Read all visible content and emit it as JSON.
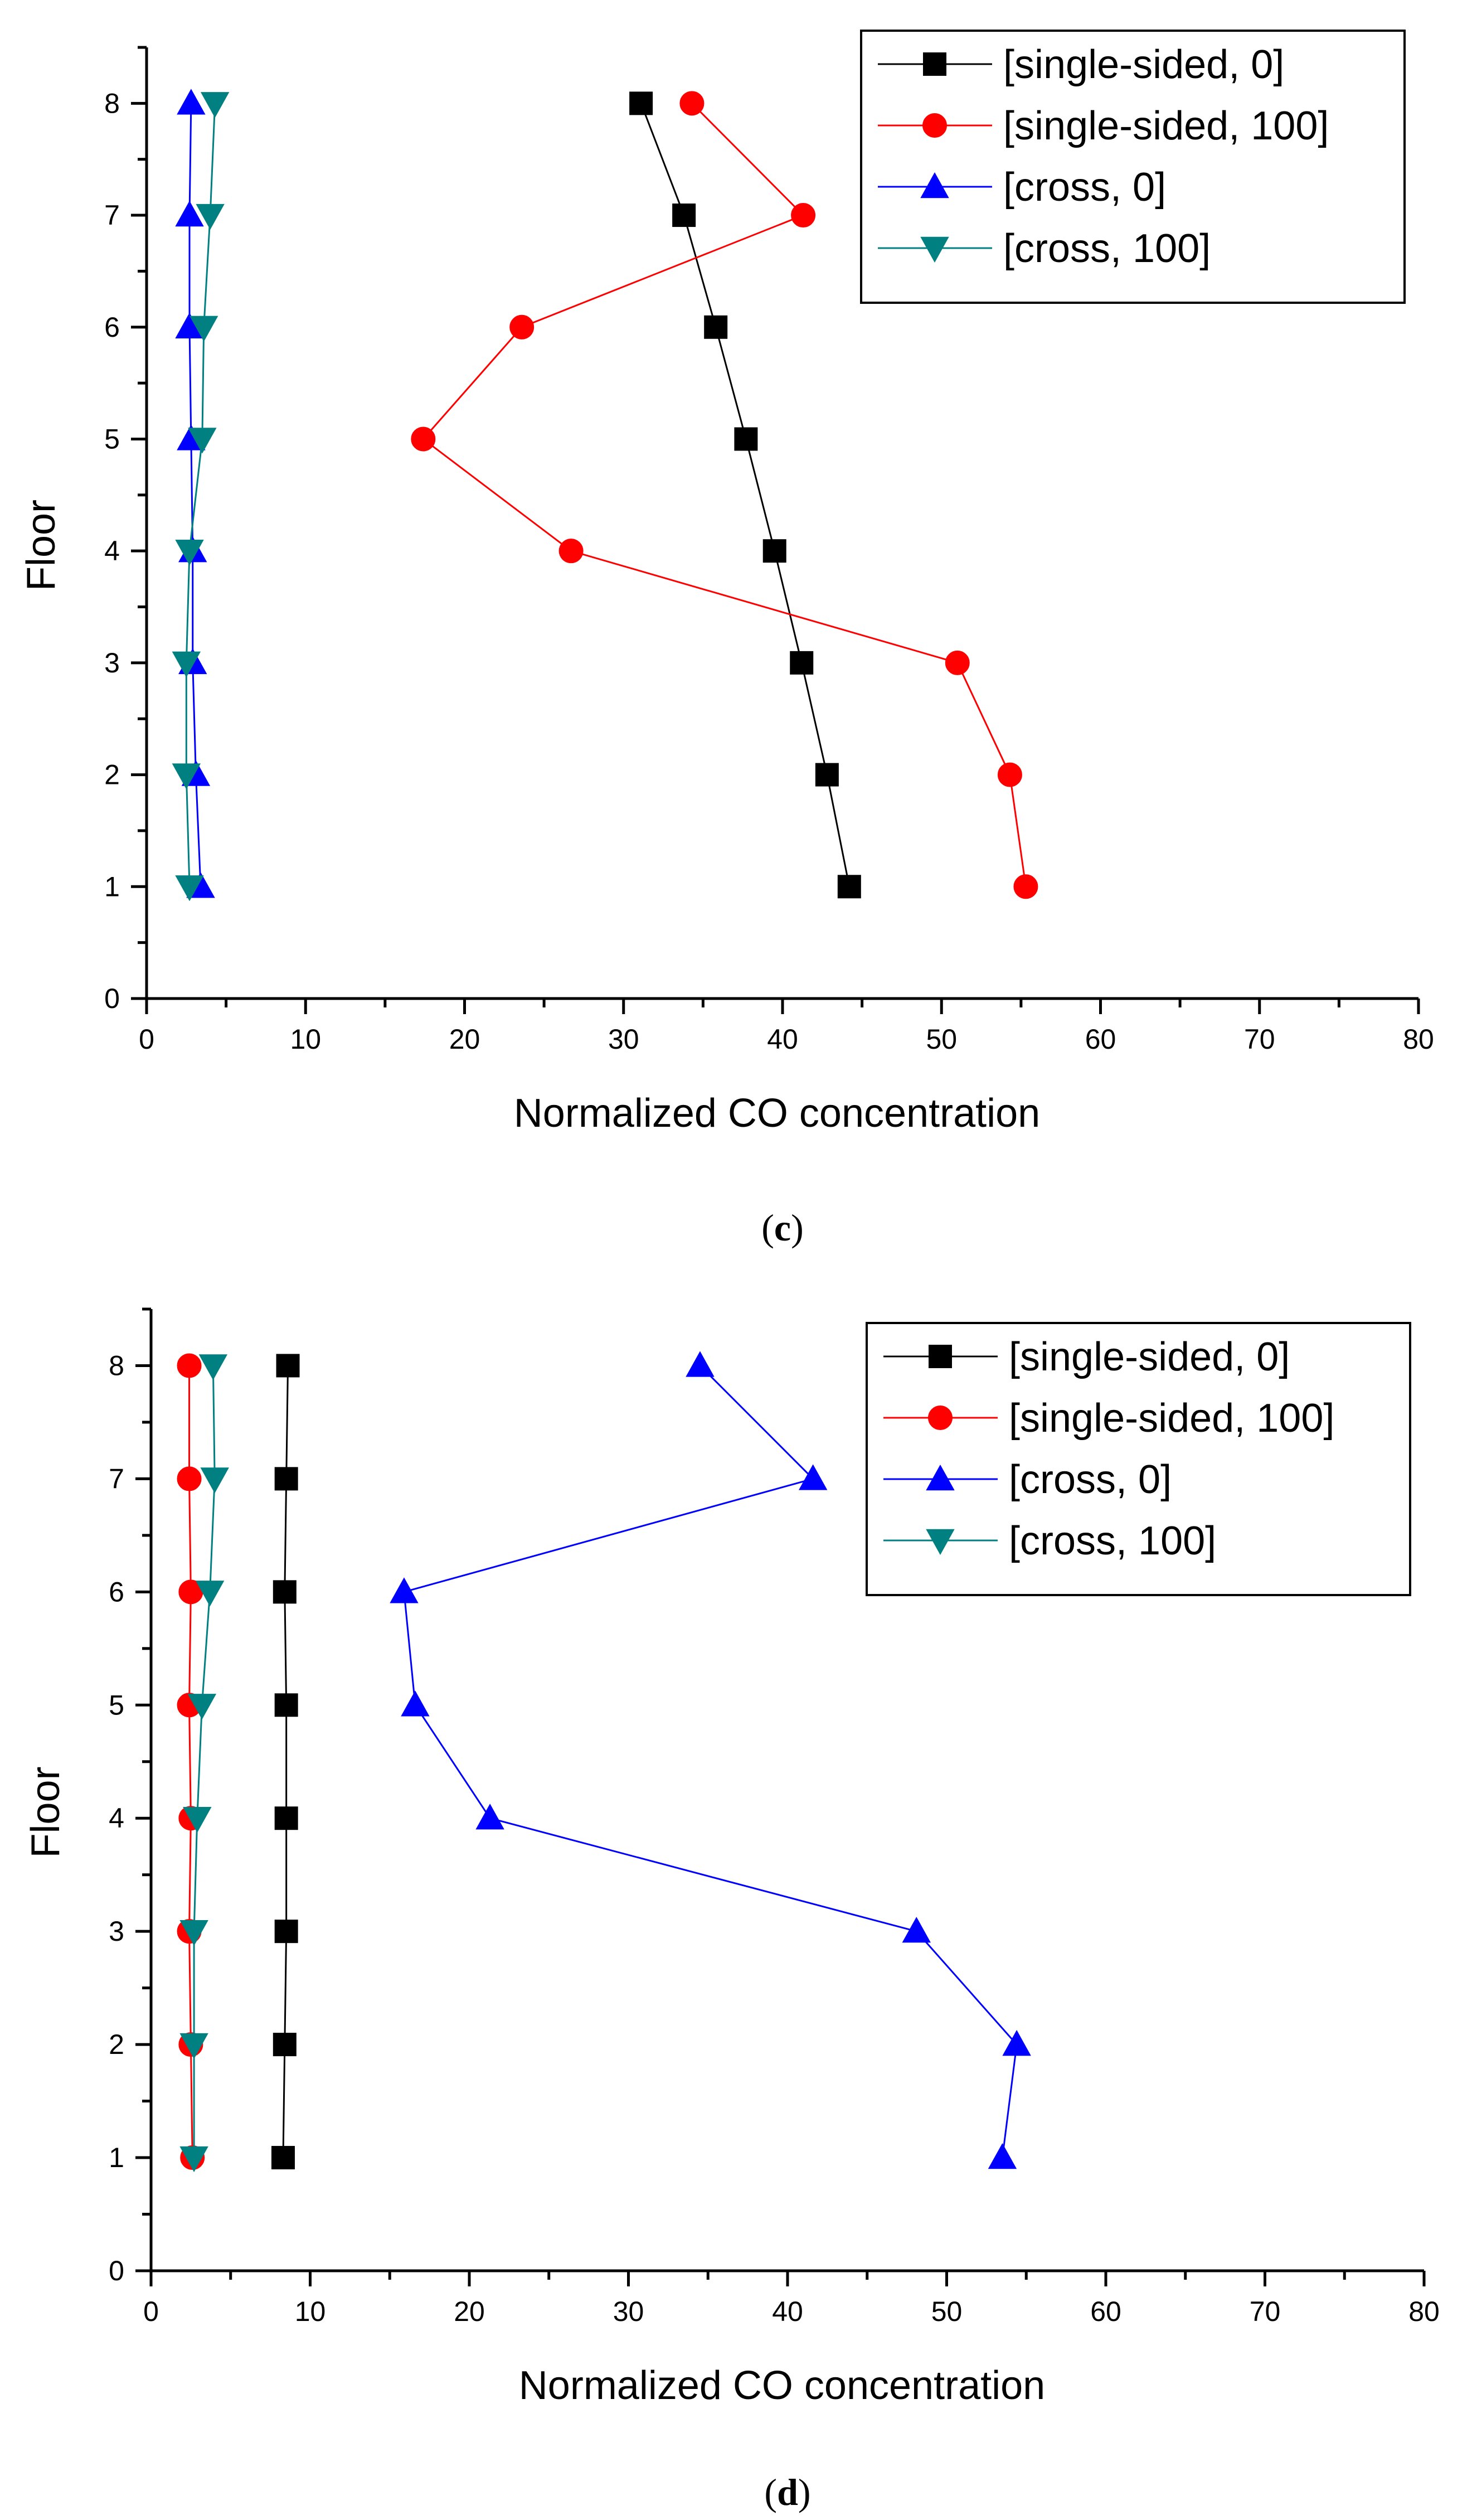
{
  "series_colors": {
    "[single-sided, 0]": "#000000",
    "[single-sided, 100]": "#ff0000",
    "[cross, 0]": "#0000ff",
    "[cross, 100]": "#008080"
  },
  "chart_data": [
    {
      "panel": "c",
      "caption_open": "(",
      "caption_letter": "c",
      "caption_close": ")",
      "type": "line",
      "xlabel": "Normalized CO concentration",
      "ylabel": "Floor",
      "xlim": [
        0,
        80
      ],
      "ylim": [
        0,
        8.5
      ],
      "xticks": [
        0,
        10,
        20,
        30,
        40,
        50,
        60,
        70,
        80
      ],
      "yticks": [
        0,
        1,
        2,
        3,
        4,
        5,
        6,
        7,
        8
      ],
      "legend_position": "top-right",
      "series": [
        {
          "name": "[single-sided, 0]",
          "marker": "square",
          "points": [
            [
              44.2,
              1
            ],
            [
              42.8,
              2
            ],
            [
              41.2,
              3
            ],
            [
              39.5,
              4
            ],
            [
              37.7,
              5
            ],
            [
              35.8,
              6
            ],
            [
              33.8,
              7
            ],
            [
              31.1,
              8
            ]
          ]
        },
        {
          "name": "[single-sided, 100]",
          "marker": "circle",
          "points": [
            [
              55.3,
              1
            ],
            [
              54.3,
              2
            ],
            [
              51.0,
              3
            ],
            [
              26.7,
              4
            ],
            [
              17.4,
              5
            ],
            [
              23.6,
              6
            ],
            [
              41.3,
              7
            ],
            [
              34.3,
              8
            ]
          ]
        },
        {
          "name": "[cross, 0]",
          "marker": "triangle-up",
          "points": [
            [
              3.4,
              1
            ],
            [
              3.1,
              2
            ],
            [
              2.9,
              3
            ],
            [
              2.9,
              4
            ],
            [
              2.8,
              5
            ],
            [
              2.7,
              6
            ],
            [
              2.7,
              7
            ],
            [
              2.8,
              8
            ]
          ]
        },
        {
          "name": "[cross, 100]",
          "marker": "triangle-down",
          "points": [
            [
              2.7,
              1
            ],
            [
              2.5,
              2
            ],
            [
              2.5,
              3
            ],
            [
              2.7,
              4
            ],
            [
              3.5,
              5
            ],
            [
              3.6,
              6
            ],
            [
              4.0,
              7
            ],
            [
              4.3,
              8
            ]
          ]
        }
      ]
    },
    {
      "panel": "d",
      "caption_open": "(",
      "caption_letter": "d",
      "caption_close": ")",
      "type": "line",
      "xlabel": "Normalized CO concentration",
      "ylabel": "Floor",
      "xlim": [
        0,
        80
      ],
      "ylim": [
        0,
        8.5
      ],
      "xticks": [
        0,
        10,
        20,
        30,
        40,
        50,
        60,
        70,
        80
      ],
      "yticks": [
        0,
        1,
        2,
        3,
        4,
        5,
        6,
        7,
        8
      ],
      "legend_position": "top-right",
      "series": [
        {
          "name": "[single-sided, 0]",
          "marker": "square",
          "points": [
            [
              8.3,
              1
            ],
            [
              8.4,
              2
            ],
            [
              8.5,
              3
            ],
            [
              8.5,
              4
            ],
            [
              8.5,
              5
            ],
            [
              8.4,
              6
            ],
            [
              8.5,
              7
            ],
            [
              8.6,
              8
            ]
          ]
        },
        {
          "name": "[single-sided, 100]",
          "marker": "circle",
          "points": [
            [
              2.6,
              1
            ],
            [
              2.5,
              2
            ],
            [
              2.4,
              3
            ],
            [
              2.5,
              4
            ],
            [
              2.4,
              5
            ],
            [
              2.5,
              6
            ],
            [
              2.4,
              7
            ],
            [
              2.4,
              8
            ]
          ]
        },
        {
          "name": "[cross, 0]",
          "marker": "triangle-up",
          "points": [
            [
              53.5,
              1
            ],
            [
              54.4,
              2
            ],
            [
              48.1,
              3
            ],
            [
              21.3,
              4
            ],
            [
              16.6,
              5
            ],
            [
              15.9,
              6
            ],
            [
              41.6,
              7
            ],
            [
              34.5,
              8
            ]
          ]
        },
        {
          "name": "[cross, 100]",
          "marker": "triangle-down",
          "points": [
            [
              2.7,
              1
            ],
            [
              2.7,
              2
            ],
            [
              2.7,
              3
            ],
            [
              2.9,
              4
            ],
            [
              3.2,
              5
            ],
            [
              3.7,
              6
            ],
            [
              4.0,
              7
            ],
            [
              3.9,
              8
            ]
          ]
        }
      ]
    }
  ]
}
